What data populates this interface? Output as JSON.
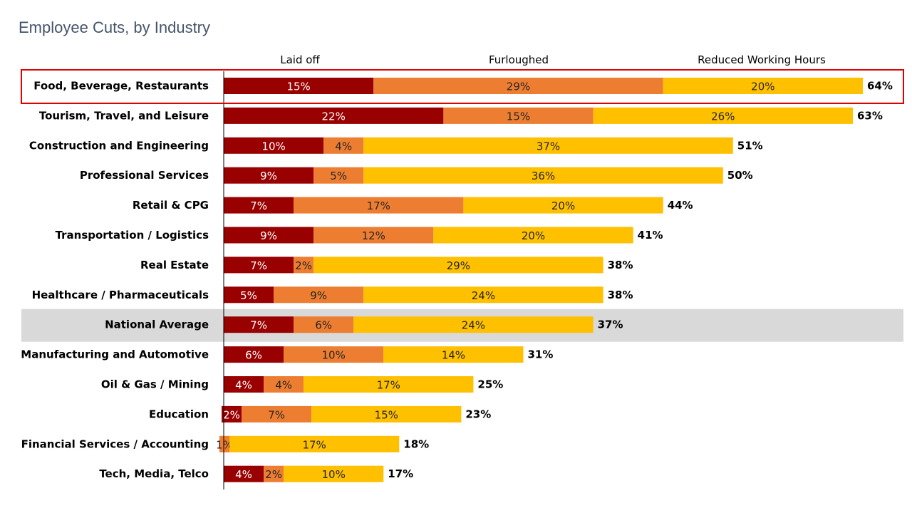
{
  "chart_data": {
    "type": "bar",
    "orientation": "horizontal",
    "stacked": true,
    "title": "Employee Cuts, by Industry",
    "xlim": [
      0,
      64
    ],
    "grid": false,
    "legend_placement": "top",
    "categories": [
      "Food, Beverage, Restaurants",
      "Tourism, Travel, and Leisure",
      "Construction and Engineering",
      "Professional Services",
      "Retail & CPG",
      "Transportation / Logistics",
      "Real Estate",
      "Healthcare / Pharmaceuticals",
      "National Average",
      "Manufacturing and Automotive",
      "Oil & Gas / Mining",
      "Education",
      "Financial Services / Accounting",
      "Tech, Media, Telco"
    ],
    "series": [
      {
        "name": "Laid off",
        "color": "#990000",
        "label_color": "#ffffff",
        "values": [
          15,
          22,
          10,
          9,
          7,
          9,
          7,
          5,
          7,
          6,
          4,
          2,
          0,
          4
        ]
      },
      {
        "name": "Furloughed",
        "color": "#ed7d31",
        "label_color": "#262626",
        "values": [
          29,
          15,
          4,
          5,
          17,
          12,
          2,
          9,
          6,
          10,
          4,
          7,
          1,
          2
        ]
      },
      {
        "name": "Reduced Working Hours",
        "color": "#ffc000",
        "label_color": "#262626",
        "values": [
          20,
          26,
          37,
          36,
          20,
          20,
          29,
          24,
          24,
          14,
          17,
          15,
          17,
          10
        ]
      }
    ],
    "segment_labels": [
      [
        "15%",
        "29%",
        "20%"
      ],
      [
        "22%",
        "15%",
        "26%"
      ],
      [
        "10%",
        "4%",
        "37%"
      ],
      [
        "9%",
        "5%",
        "36%"
      ],
      [
        "7%",
        "17%",
        "20%"
      ],
      [
        "9%",
        "12%",
        "20%"
      ],
      [
        "7%",
        "2%",
        "29%"
      ],
      [
        "5%",
        "9%",
        "24%"
      ],
      [
        "7%",
        "6%",
        "24%"
      ],
      [
        "6%",
        "10%",
        "14%"
      ],
      [
        "4%",
        "4%",
        "17%"
      ],
      [
        "2%",
        "7%",
        "15%"
      ],
      [
        "",
        "1%",
        "17%"
      ],
      [
        "4%",
        "2%",
        "10%"
      ]
    ],
    "totals": [
      64,
      63,
      51,
      50,
      44,
      41,
      38,
      38,
      37,
      31,
      25,
      23,
      18,
      17
    ],
    "total_labels": [
      "64%",
      "63%",
      "51%",
      "50%",
      "44%",
      "41%",
      "38%",
      "38%",
      "37%",
      "31%",
      "25%",
      "23%",
      "18%",
      "17%"
    ],
    "highlight_outline_row": "Food, Beverage, Restaurants",
    "highlight_shaded_row": "National Average",
    "highlight_outline_color": "#e00000",
    "highlight_shade_color": "#d9d9d9"
  }
}
